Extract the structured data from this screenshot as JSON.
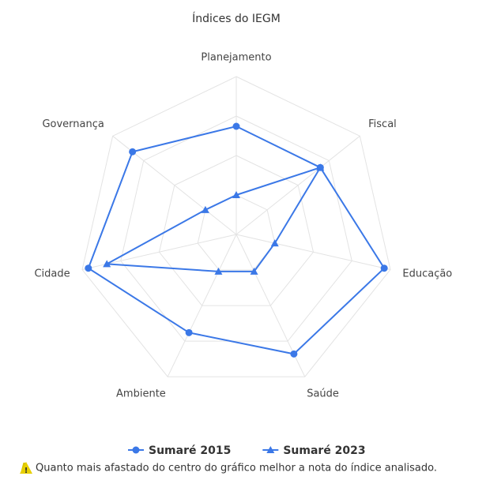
{
  "chart_data": {
    "type": "radar",
    "title": "Índices do IEGM",
    "categories": [
      "Planejamento",
      "Fiscal",
      "Educação",
      "Saúde",
      "Ambiente",
      "Cidade",
      "Governança"
    ],
    "series": [
      {
        "name": "Sumaré 2015",
        "color": "#3b78e7",
        "marker": "circle",
        "values": [
          68.5,
          68,
          96,
          84,
          69,
          96,
          84
        ]
      },
      {
        "name": "Sumaré 2023",
        "color": "#3b78e7",
        "marker": "triangle",
        "values": [
          25,
          68,
          25,
          26,
          26,
          84,
          25
        ]
      }
    ],
    "ylim": [
      0,
      100
    ],
    "yticks": [
      25,
      50,
      75,
      100
    ],
    "grid": true
  },
  "footnote": "Quanto mais afastado do centro do gráfico melhor a nota do índice analisado."
}
